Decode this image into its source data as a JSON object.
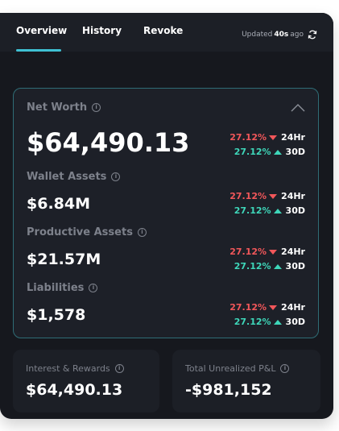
{
  "tabs": [
    {
      "label": "Overview"
    },
    {
      "label": "History"
    },
    {
      "label": "Revoke"
    }
  ],
  "updated": {
    "prefix": "Updated",
    "time": "40s",
    "suffix": "ago"
  },
  "net_worth": {
    "label": "Net Worth",
    "value": "$64,490.13",
    "change_24h": "27.12%",
    "change_30d": "27.12%"
  },
  "wallet_assets": {
    "label": "Wallet Assets",
    "value": "$6.84M",
    "change_24h": "27.12%",
    "change_30d": "27.12%"
  },
  "productive_assets": {
    "label": "Productive Assets",
    "value": "$21.57M",
    "change_24h": "27.12%",
    "change_30d": "27.12%"
  },
  "liabilities": {
    "label": "Liabilities",
    "value": "$1,578",
    "change_24h": "27.12%",
    "change_30d": "27.12%"
  },
  "periods": {
    "short": "24Hr",
    "long": "30D"
  },
  "interest_rewards": {
    "label": "Interest & Rewards",
    "value": "$64,490.13"
  },
  "unrealized_pnl": {
    "label": "Total Unrealized P&L",
    "value": "-$981,152"
  },
  "info_glyph": "i",
  "colors": {
    "accent": "#3fc1d3",
    "negative": "#f2575a",
    "positive": "#3ed6b9",
    "background": "#16181e"
  },
  "icons": {
    "refresh": "refresh-icon",
    "collapse": "chevron-up-icon",
    "info": "info-icon"
  }
}
